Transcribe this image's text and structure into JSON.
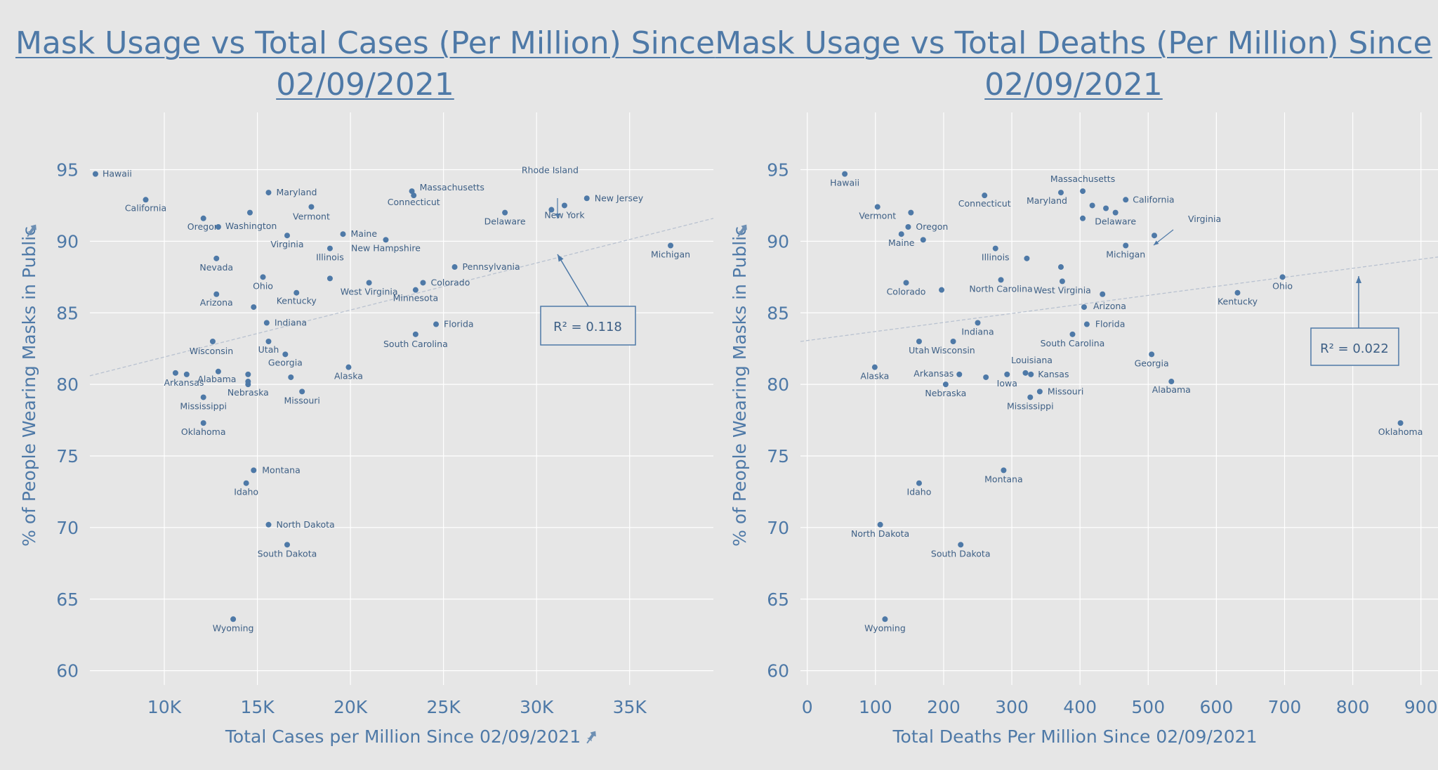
{
  "colors": {
    "background": "#e6e6e6",
    "accent": "#4e79a7",
    "grid": "#ffffff",
    "trend": "#b9c2d0"
  },
  "icons": [
    "pin-icon"
  ],
  "chart_data": [
    {
      "type": "scatter",
      "title": "Mask Usage vs Total Cases (Per Million) Since 02/09/2021",
      "xlabel": "Total Cases per Million Since 02/09/2021",
      "ylabel": "% of People Wearing Masks in Public",
      "xlim": [
        6000,
        39500
      ],
      "ylim": [
        59,
        99
      ],
      "xticks": [
        10000,
        15000,
        20000,
        25000,
        30000,
        35000
      ],
      "xtick_labels": [
        "10K",
        "15K",
        "20K",
        "25K",
        "30K",
        "35K"
      ],
      "yticks": [
        60,
        65,
        70,
        75,
        80,
        85,
        90,
        95
      ],
      "ytick_labels": [
        "60",
        "65",
        "70",
        "75",
        "80",
        "85",
        "90",
        "95"
      ],
      "grid": true,
      "trendline": {
        "x": [
          6000,
          39500
        ],
        "y": [
          80.6,
          91.6
        ]
      },
      "annotation": "R² = 0.118",
      "points": [
        {
          "label": "Hawaii",
          "x": 6300,
          "y": 94.7
        },
        {
          "label": "California",
          "x": 9000,
          "y": 92.9
        },
        {
          "label": "Oregon",
          "x": 12100,
          "y": 91.6
        },
        {
          "label": "Washington",
          "x": 12900,
          "y": 91.0
        },
        {
          "label": "",
          "x": 14600,
          "y": 92.0
        },
        {
          "label": "Maryland",
          "x": 15600,
          "y": 93.4
        },
        {
          "label": "Vermont",
          "x": 17900,
          "y": 92.4
        },
        {
          "label": "Virginia",
          "x": 16600,
          "y": 90.4
        },
        {
          "label": "Maine",
          "x": 19600,
          "y": 90.5
        },
        {
          "label": "Illinois",
          "x": 18900,
          "y": 89.5
        },
        {
          "label": "New Hampshire",
          "x": 21900,
          "y": 90.1
        },
        {
          "label": "Massachusetts",
          "x": 23300,
          "y": 93.5
        },
        {
          "label": "Connecticut",
          "x": 23400,
          "y": 93.2
        },
        {
          "label": "Delaware",
          "x": 28300,
          "y": 92.0
        },
        {
          "label": "Rhode Island",
          "x": 30800,
          "y": 92.2
        },
        {
          "label": "New York",
          "x": 31500,
          "y": 92.5
        },
        {
          "label": "New Jersey",
          "x": 32700,
          "y": 93.0
        },
        {
          "label": "Michigan",
          "x": 37200,
          "y": 89.7
        },
        {
          "label": "Nevada",
          "x": 12800,
          "y": 88.8
        },
        {
          "label": "Ohio",
          "x": 15300,
          "y": 87.5
        },
        {
          "label": "Pennsylvania",
          "x": 25600,
          "y": 88.2
        },
        {
          "label": "Colorado",
          "x": 23900,
          "y": 87.1
        },
        {
          "label": "West Virginia",
          "x": 21000,
          "y": 87.1
        },
        {
          "label": "",
          "x": 18900,
          "y": 87.4
        },
        {
          "label": "Minnesota",
          "x": 23500,
          "y": 86.6
        },
        {
          "label": "Arizona",
          "x": 12800,
          "y": 86.3
        },
        {
          "label": "",
          "x": 14800,
          "y": 85.4
        },
        {
          "label": "Kentucky",
          "x": 17100,
          "y": 86.4
        },
        {
          "label": "Indiana",
          "x": 15500,
          "y": 84.3
        },
        {
          "label": "Florida",
          "x": 24600,
          "y": 84.2
        },
        {
          "label": "South Carolina",
          "x": 23500,
          "y": 83.5
        },
        {
          "label": "Wisconsin",
          "x": 12600,
          "y": 83.0
        },
        {
          "label": "Utah",
          "x": 15600,
          "y": 83.0
        },
        {
          "label": "Georgia",
          "x": 16500,
          "y": 82.1
        },
        {
          "label": "Alaska",
          "x": 19900,
          "y": 81.2
        },
        {
          "label": "Arkansas",
          "x": 10600,
          "y": 80.8
        },
        {
          "label": "",
          "x": 11200,
          "y": 80.7
        },
        {
          "label": "Alabama",
          "x": 12900,
          "y": 80.9
        },
        {
          "label": "",
          "x": 14500,
          "y": 80.7
        },
        {
          "label": "",
          "x": 14500,
          "y": 80.2
        },
        {
          "label": "Nebraska",
          "x": 14500,
          "y": 80.0
        },
        {
          "label": "",
          "x": 16800,
          "y": 80.5
        },
        {
          "label": "Missouri",
          "x": 17400,
          "y": 79.5
        },
        {
          "label": "Mississippi",
          "x": 12100,
          "y": 79.1
        },
        {
          "label": "Oklahoma",
          "x": 12100,
          "y": 77.3
        },
        {
          "label": "Montana",
          "x": 14800,
          "y": 74.0
        },
        {
          "label": "Idaho",
          "x": 14400,
          "y": 73.1
        },
        {
          "label": "North Dakota",
          "x": 15600,
          "y": 70.2
        },
        {
          "label": "South Dakota",
          "x": 16600,
          "y": 68.8
        },
        {
          "label": "Wyoming",
          "x": 13700,
          "y": 63.6
        }
      ]
    },
    {
      "type": "scatter",
      "title": "Mask Usage vs Total Deaths (Per Million) Since 02/09/2021",
      "xlabel": "Total Deaths Per Million Since 02/09/2021",
      "ylabel": "% of People Wearing Masks in Public",
      "xlim": [
        -10,
        925
      ],
      "ylim": [
        59,
        99
      ],
      "xticks": [
        0,
        100,
        200,
        300,
        400,
        500,
        600,
        700,
        800,
        900
      ],
      "xtick_labels": [
        "0",
        "100",
        "200",
        "300",
        "400",
        "500",
        "600",
        "700",
        "800",
        "900"
      ],
      "yticks": [
        60,
        65,
        70,
        75,
        80,
        85,
        90,
        95
      ],
      "ytick_labels": [
        "60",
        "65",
        "70",
        "75",
        "80",
        "85",
        "90",
        "95"
      ],
      "grid": true,
      "trendline": {
        "x": [
          -10,
          925
        ],
        "y": [
          83.0,
          88.9
        ]
      },
      "annotation": "R² = 0.022",
      "points": [
        {
          "label": "Hawaii",
          "x": 55,
          "y": 94.7
        },
        {
          "label": "Vermont",
          "x": 103,
          "y": 92.4
        },
        {
          "label": "",
          "x": 152,
          "y": 92.0
        },
        {
          "label": "Oregon",
          "x": 148,
          "y": 91.0
        },
        {
          "label": "Maine",
          "x": 138,
          "y": 90.5
        },
        {
          "label": "",
          "x": 170,
          "y": 90.1
        },
        {
          "label": "Connecticut",
          "x": 260,
          "y": 93.2
        },
        {
          "label": "Maryland",
          "x": 372,
          "y": 93.4
        },
        {
          "label": "Massachusetts",
          "x": 404,
          "y": 93.5
        },
        {
          "label": "",
          "x": 418,
          "y": 92.5
        },
        {
          "label": "",
          "x": 438,
          "y": 92.3
        },
        {
          "label": "Delaware",
          "x": 452,
          "y": 92.0
        },
        {
          "label": "",
          "x": 404,
          "y": 91.6
        },
        {
          "label": "California",
          "x": 467,
          "y": 92.9
        },
        {
          "label": "Virginia",
          "x": 509,
          "y": 90.4
        },
        {
          "label": "Michigan",
          "x": 467,
          "y": 89.7
        },
        {
          "label": "Illinois",
          "x": 276,
          "y": 89.5
        },
        {
          "label": "",
          "x": 322,
          "y": 88.8
        },
        {
          "label": "",
          "x": 372,
          "y": 88.2
        },
        {
          "label": "North Carolina",
          "x": 284,
          "y": 87.3
        },
        {
          "label": "West Virginia",
          "x": 374,
          "y": 87.2
        },
        {
          "label": "Colorado",
          "x": 145,
          "y": 87.1
        },
        {
          "label": "",
          "x": 197,
          "y": 86.6
        },
        {
          "label": "",
          "x": 433,
          "y": 86.3
        },
        {
          "label": "Arizona",
          "x": 406,
          "y": 85.4
        },
        {
          "label": "Kentucky",
          "x": 631,
          "y": 86.4
        },
        {
          "label": "Ohio",
          "x": 697,
          "y": 87.5
        },
        {
          "label": "Indiana",
          "x": 250,
          "y": 84.3
        },
        {
          "label": "Florida",
          "x": 410,
          "y": 84.2
        },
        {
          "label": "South Carolina",
          "x": 389,
          "y": 83.5
        },
        {
          "label": "Utah",
          "x": 164,
          "y": 83.0
        },
        {
          "label": "Wisconsin",
          "x": 214,
          "y": 83.0
        },
        {
          "label": "Georgia",
          "x": 505,
          "y": 82.1
        },
        {
          "label": "Alaska",
          "x": 99,
          "y": 81.2
        },
        {
          "label": "Louisiana",
          "x": 320,
          "y": 80.8
        },
        {
          "label": "Kansas",
          "x": 328,
          "y": 80.7
        },
        {
          "label": "Arkansas",
          "x": 223,
          "y": 80.7
        },
        {
          "label": "Iowa",
          "x": 293,
          "y": 80.7
        },
        {
          "label": "",
          "x": 262,
          "y": 80.5
        },
        {
          "label": "Nebraska",
          "x": 203,
          "y": 80.0
        },
        {
          "label": "Alabama",
          "x": 534,
          "y": 80.2
        },
        {
          "label": "Missouri",
          "x": 341,
          "y": 79.5
        },
        {
          "label": "Mississippi",
          "x": 327,
          "y": 79.1
        },
        {
          "label": "Oklahoma",
          "x": 870,
          "y": 77.3
        },
        {
          "label": "Montana",
          "x": 288,
          "y": 74.0
        },
        {
          "label": "Idaho",
          "x": 164,
          "y": 73.1
        },
        {
          "label": "North Dakota",
          "x": 107,
          "y": 70.2
        },
        {
          "label": "South Dakota",
          "x": 225,
          "y": 68.8
        },
        {
          "label": "Wyoming",
          "x": 114,
          "y": 63.6
        }
      ]
    }
  ]
}
